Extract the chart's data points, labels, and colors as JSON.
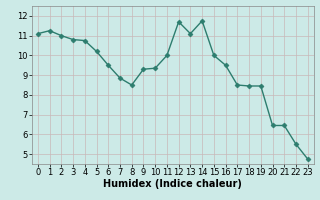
{
  "x": [
    0,
    1,
    2,
    3,
    4,
    5,
    6,
    7,
    8,
    9,
    10,
    11,
    12,
    13,
    14,
    15,
    16,
    17,
    18,
    19,
    20,
    21,
    22,
    23
  ],
  "y": [
    11.1,
    11.25,
    11.0,
    10.8,
    10.75,
    10.2,
    9.5,
    8.85,
    8.5,
    9.3,
    9.35,
    10.0,
    11.7,
    11.1,
    11.75,
    10.0,
    9.5,
    8.5,
    8.45,
    8.45,
    6.45,
    6.45,
    5.5,
    4.75
  ],
  "xlabel": "Humidex (Indice chaleur)",
  "xlim": [
    -0.5,
    23.5
  ],
  "ylim": [
    4.5,
    12.5
  ],
  "yticks": [
    5,
    6,
    7,
    8,
    9,
    10,
    11,
    12
  ],
  "xticks": [
    0,
    1,
    2,
    3,
    4,
    5,
    6,
    7,
    8,
    9,
    10,
    11,
    12,
    13,
    14,
    15,
    16,
    17,
    18,
    19,
    20,
    21,
    22,
    23
  ],
  "line_color": "#2d7d6e",
  "bg_color": "#cceae7",
  "grid_color": "#c8b8b8",
  "marker_size": 2.5,
  "line_width": 1.0,
  "xlabel_fontsize": 7,
  "tick_fontsize": 6
}
